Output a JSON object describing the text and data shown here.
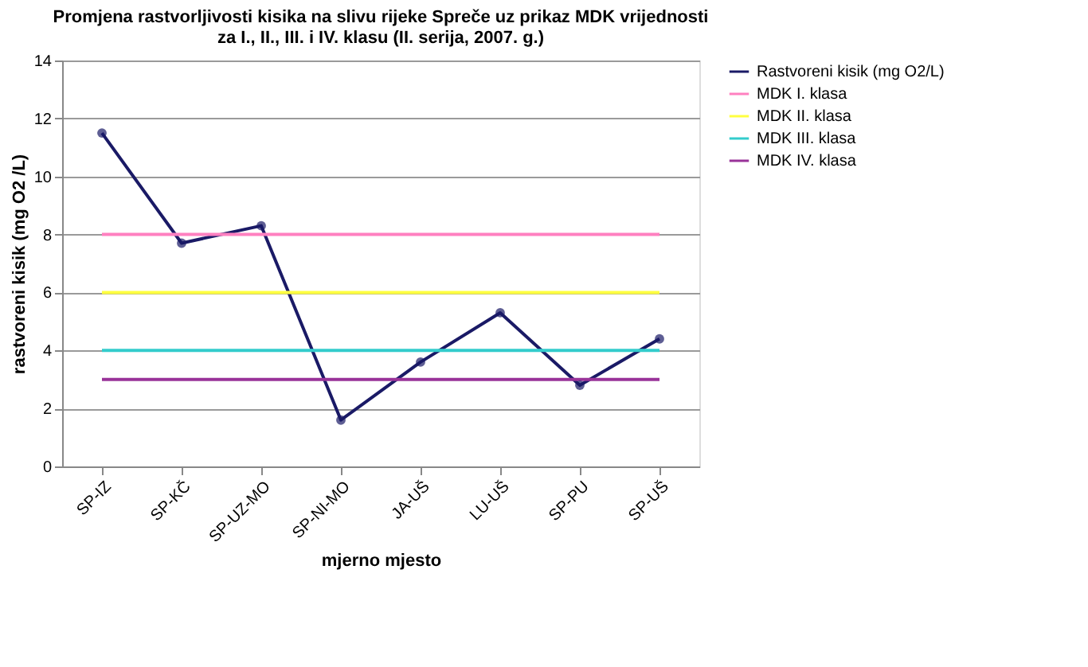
{
  "chart_data": {
    "type": "line",
    "title": [
      "Promjena rastvorljivosti kisika na slivu rijeke Spreče uz prikaz MDK vrijednosti",
      "za I., II., III. i IV. klasu (II. serija, 2007. g.)"
    ],
    "xlabel": "mjerno mjesto",
    "ylabel": "rastvoreni kisik (mg O2 /L)",
    "categories": [
      "SP-IZ",
      "SP-KČ",
      "SP-UZ-MO",
      "SP-NI-MO",
      "JA-UŠ",
      "LU-UŠ",
      "SP-PU",
      "SP-UŠ"
    ],
    "ylim": [
      0,
      14
    ],
    "yticks": [
      0,
      2,
      4,
      6,
      8,
      10,
      12,
      14
    ],
    "grid": "y",
    "legend": "right",
    "line_style": "solid",
    "series": [
      {
        "name": "Rastvoreni kisik (mg O2/L)",
        "color": "#1a1a66",
        "marker": "circle",
        "values": [
          11.5,
          7.7,
          8.3,
          1.6,
          3.6,
          5.3,
          2.8,
          4.4
        ]
      },
      {
        "name": "MDK I. klasa",
        "color": "#ff80c0",
        "marker": "none",
        "values": [
          8,
          8,
          8,
          8,
          8,
          8,
          8,
          8
        ]
      },
      {
        "name": "MDK II. klasa",
        "color": "#ffff40",
        "marker": "none",
        "values": [
          6,
          6,
          6,
          6,
          6,
          6,
          6,
          6
        ]
      },
      {
        "name": "MDK III. klasa",
        "color": "#33cccc",
        "marker": "none",
        "values": [
          4,
          4,
          4,
          4,
          4,
          4,
          4,
          4
        ]
      },
      {
        "name": "MDK IV. klasa",
        "color": "#993399",
        "marker": "none",
        "values": [
          3,
          3,
          3,
          3,
          3,
          3,
          3,
          3
        ]
      }
    ]
  }
}
